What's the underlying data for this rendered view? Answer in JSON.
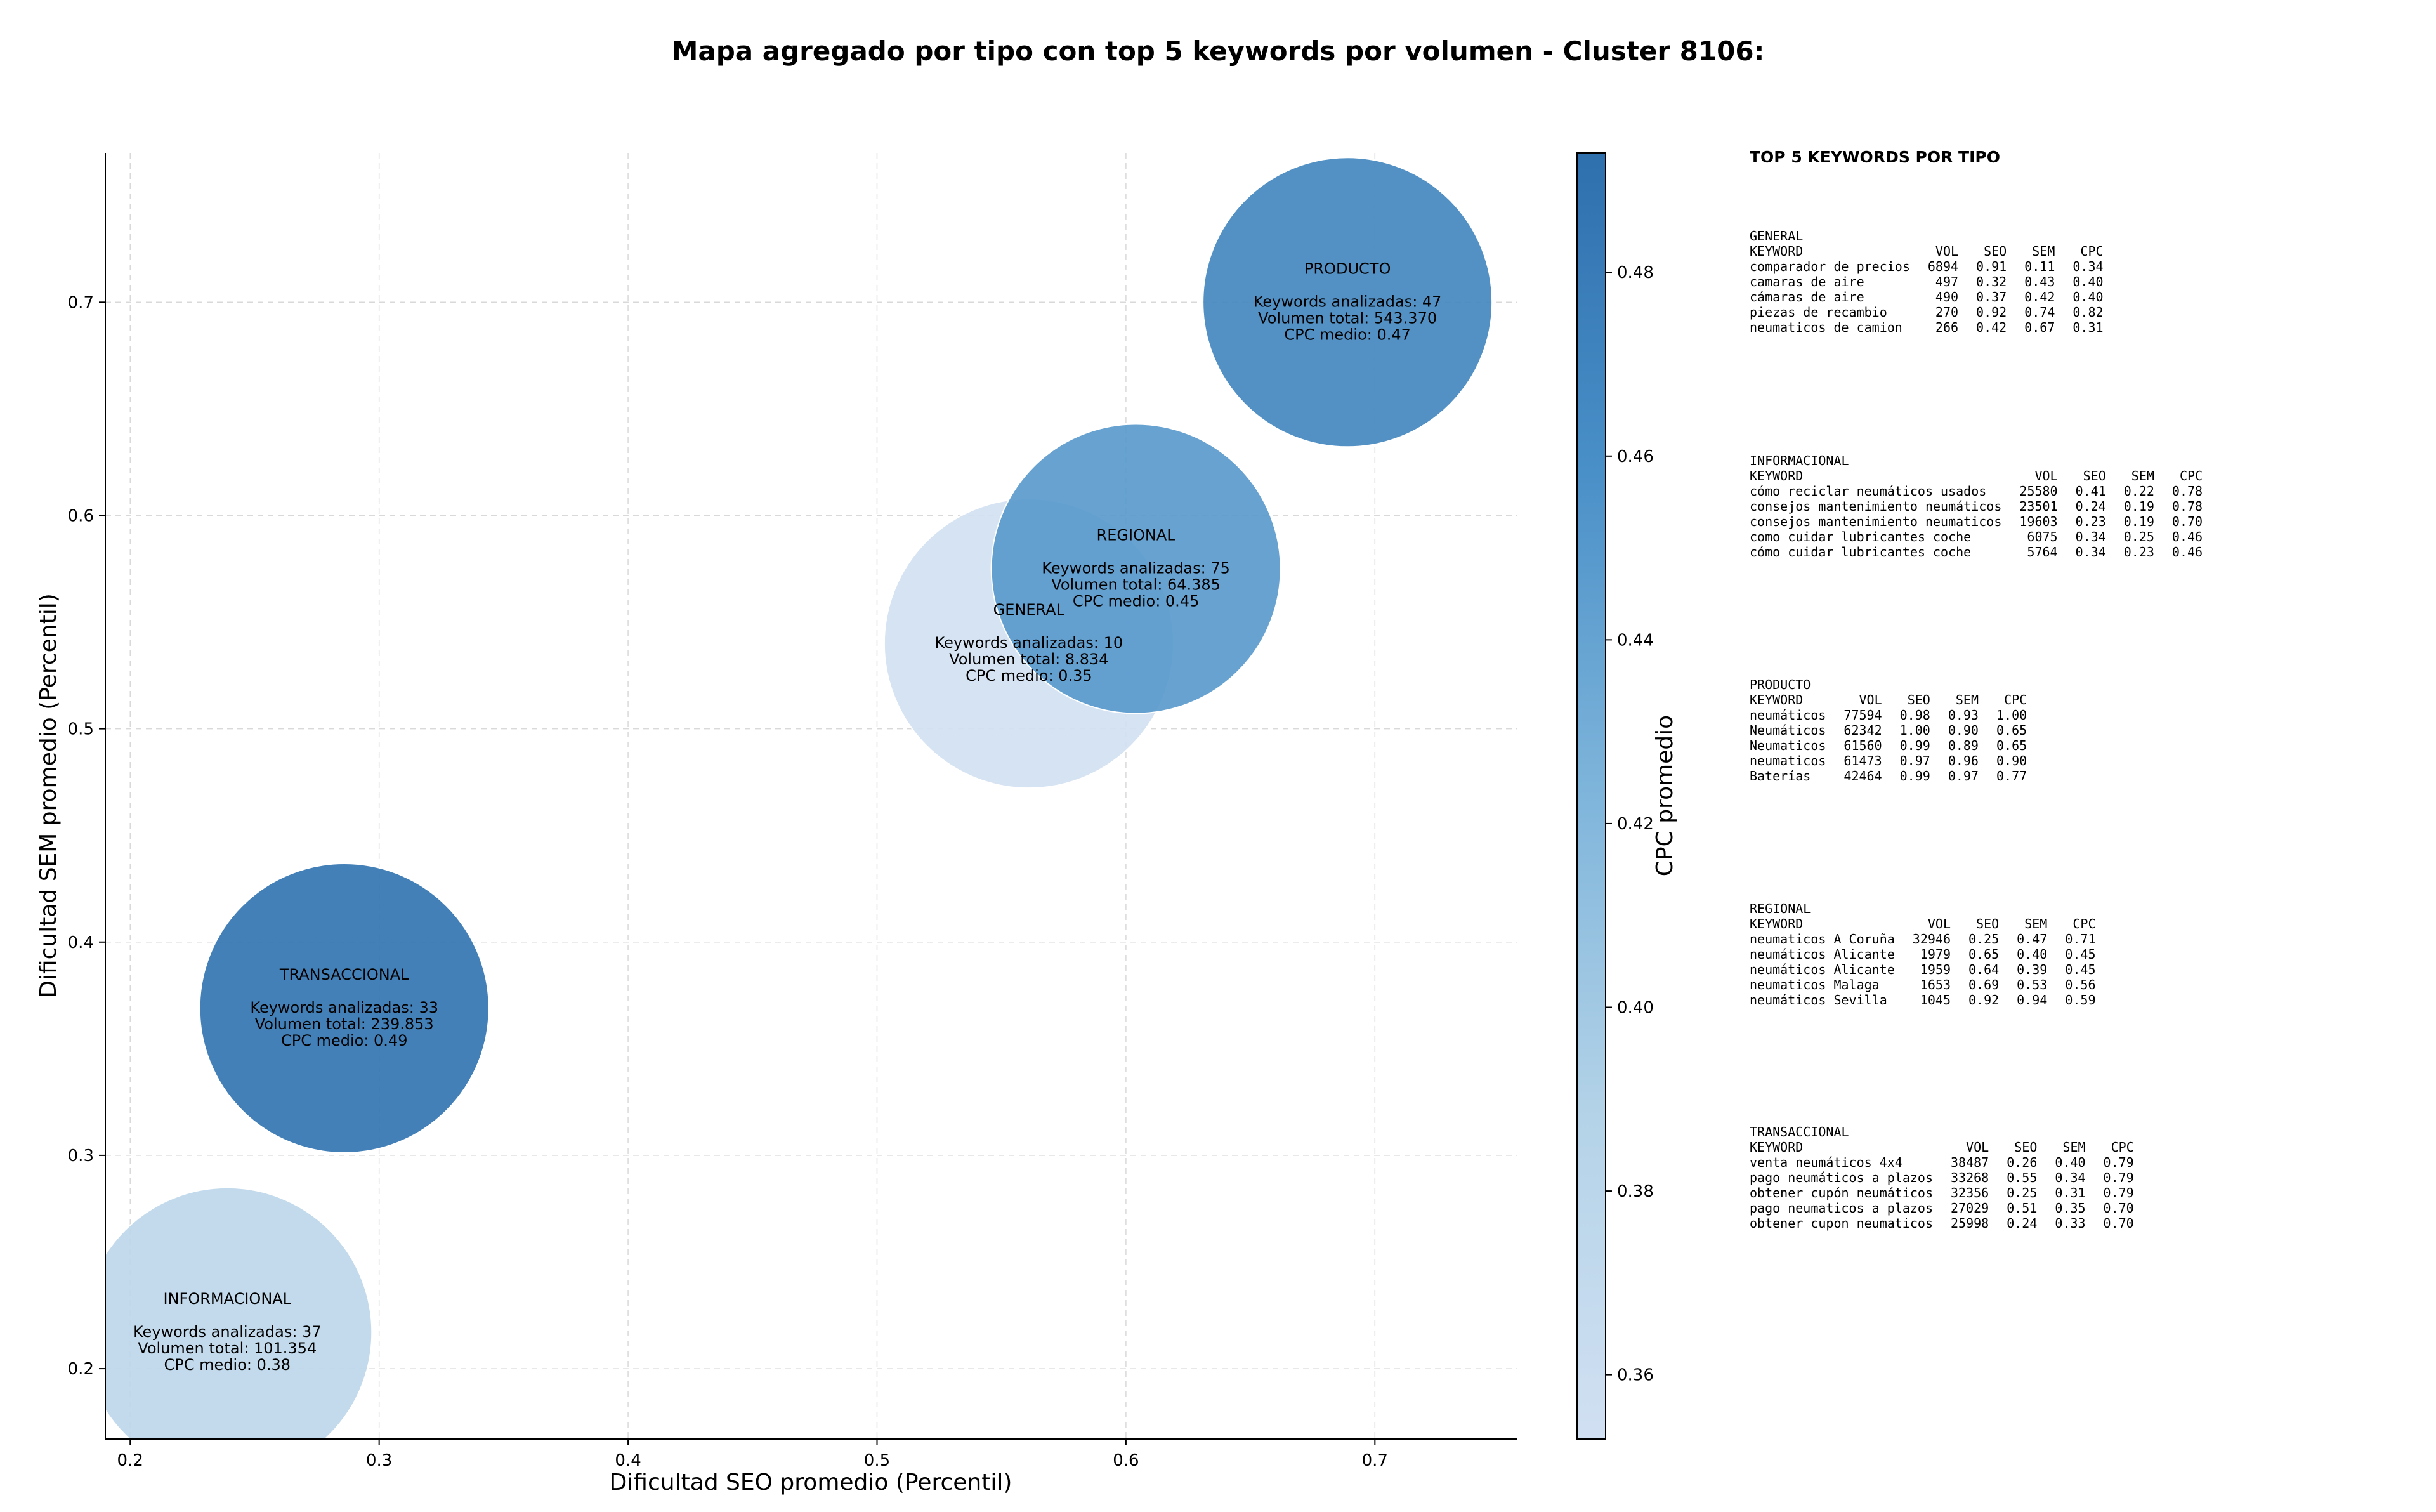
{
  "title": "Mapa agregado por tipo con top 5 keywords por volumen - Cluster 8106:",
  "chart_data": {
    "type": "scatter",
    "title": "Mapa agregado por tipo con top 5 keywords por volumen - Cluster 8106:",
    "xlabel": "Dificultad SEO promedio (Percentil)",
    "ylabel": "Dificultad SEM promedio (Percentil)",
    "xlim": [
      0.19,
      0.757
    ],
    "ylim": [
      0.167,
      0.77
    ],
    "xticks": [
      "0.2",
      "0.3",
      "0.4",
      "0.5",
      "0.6",
      "0.7"
    ],
    "yticks": [
      "0.2",
      "0.3",
      "0.4",
      "0.5",
      "0.6",
      "0.7"
    ],
    "grid": true,
    "colorbar": {
      "label": "CPC promedio",
      "min": 0.353,
      "max": 0.493,
      "ticks": [
        "0.36",
        "0.38",
        "0.40",
        "0.42",
        "0.44",
        "0.46",
        "0.48"
      ],
      "colormap": "Blues"
    },
    "points": [
      {
        "name": "INFORMACIONAL",
        "x": 0.239,
        "y": 0.217,
        "cpc": 0.38,
        "lines": [
          "Keywords analizadas: 37",
          "Volumen total: 101.354",
          "CPC medio: 0.38"
        ]
      },
      {
        "name": "TRANSACCIONAL",
        "x": 0.286,
        "y": 0.369,
        "cpc": 0.49,
        "lines": [
          "Keywords analizadas: 33",
          "Volumen total: 239.853",
          "CPC medio: 0.49"
        ]
      },
      {
        "name": "GENERAL",
        "x": 0.561,
        "y": 0.54,
        "cpc": 0.35,
        "lines": [
          "Keywords analizadas: 10",
          "Volumen total: 8.834",
          "CPC medio: 0.35"
        ]
      },
      {
        "name": "REGIONAL",
        "x": 0.604,
        "y": 0.575,
        "cpc": 0.45,
        "lines": [
          "Keywords analizadas: 75",
          "Volumen total: 64.385",
          "CPC medio: 0.45"
        ]
      },
      {
        "name": "PRODUCTO",
        "x": 0.689,
        "y": 0.7,
        "cpc": 0.47,
        "lines": [
          "Keywords analizadas: 47",
          "Volumen total: 543.370",
          "CPC medio: 0.47"
        ]
      }
    ]
  },
  "keywords_panel": {
    "title": "TOP 5 KEYWORDS POR TIPO",
    "columns": [
      "KEYWORD",
      "VOL",
      "SEO",
      "SEM",
      "CPC"
    ],
    "groups": [
      {
        "name": "GENERAL",
        "rows": [
          [
            "comparador de precios",
            "6894",
            "0.91",
            "0.11",
            "0.34"
          ],
          [
            "camaras de aire",
            "497",
            "0.32",
            "0.43",
            "0.40"
          ],
          [
            "cámaras de aire",
            "490",
            "0.37",
            "0.42",
            "0.40"
          ],
          [
            "piezas de recambio",
            "270",
            "0.92",
            "0.74",
            "0.82"
          ],
          [
            "neumaticos de camion",
            "266",
            "0.42",
            "0.67",
            "0.31"
          ]
        ]
      },
      {
        "name": "INFORMACIONAL",
        "rows": [
          [
            "cómo reciclar neumáticos usados",
            "25580",
            "0.41",
            "0.22",
            "0.78"
          ],
          [
            "consejos mantenimiento neumáticos",
            "23501",
            "0.24",
            "0.19",
            "0.78"
          ],
          [
            "consejos mantenimiento neumaticos",
            "19603",
            "0.23",
            "0.19",
            "0.70"
          ],
          [
            "como cuidar lubricantes coche",
            "6075",
            "0.34",
            "0.25",
            "0.46"
          ],
          [
            "cómo cuidar lubricantes coche",
            "5764",
            "0.34",
            "0.23",
            "0.46"
          ]
        ]
      },
      {
        "name": "PRODUCTO",
        "rows": [
          [
            "neumáticos",
            "77594",
            "0.98",
            "0.93",
            "1.00"
          ],
          [
            "Neumáticos",
            "62342",
            "1.00",
            "0.90",
            "0.65"
          ],
          [
            "Neumaticos",
            "61560",
            "0.99",
            "0.89",
            "0.65"
          ],
          [
            "neumaticos",
            "61473",
            "0.97",
            "0.96",
            "0.90"
          ],
          [
            "Baterías",
            "42464",
            "0.99",
            "0.97",
            "0.77"
          ]
        ]
      },
      {
        "name": "REGIONAL",
        "rows": [
          [
            "neumaticos A Coruña",
            "32946",
            "0.25",
            "0.47",
            "0.71"
          ],
          [
            "neumáticos Alicante",
            "1979",
            "0.65",
            "0.40",
            "0.45"
          ],
          [
            "neumáticos Alicante",
            "1959",
            "0.64",
            "0.39",
            "0.45"
          ],
          [
            "neumaticos Malaga",
            "1653",
            "0.69",
            "0.53",
            "0.56"
          ],
          [
            "neumáticos Sevilla",
            "1045",
            "0.92",
            "0.94",
            "0.59"
          ]
        ]
      },
      {
        "name": "TRANSACCIONAL",
        "rows": [
          [
            "venta neumáticos 4x4",
            "38487",
            "0.26",
            "0.40",
            "0.79"
          ],
          [
            "pago neumáticos a plazos",
            "33268",
            "0.55",
            "0.34",
            "0.79"
          ],
          [
            "obtener cupón neumáticos",
            "32356",
            "0.25",
            "0.31",
            "0.79"
          ],
          [
            "pago neumaticos a plazos",
            "27029",
            "0.51",
            "0.35",
            "0.70"
          ],
          [
            "obtener cupon neumaticos",
            "25998",
            "0.24",
            "0.33",
            "0.70"
          ]
        ]
      }
    ]
  }
}
